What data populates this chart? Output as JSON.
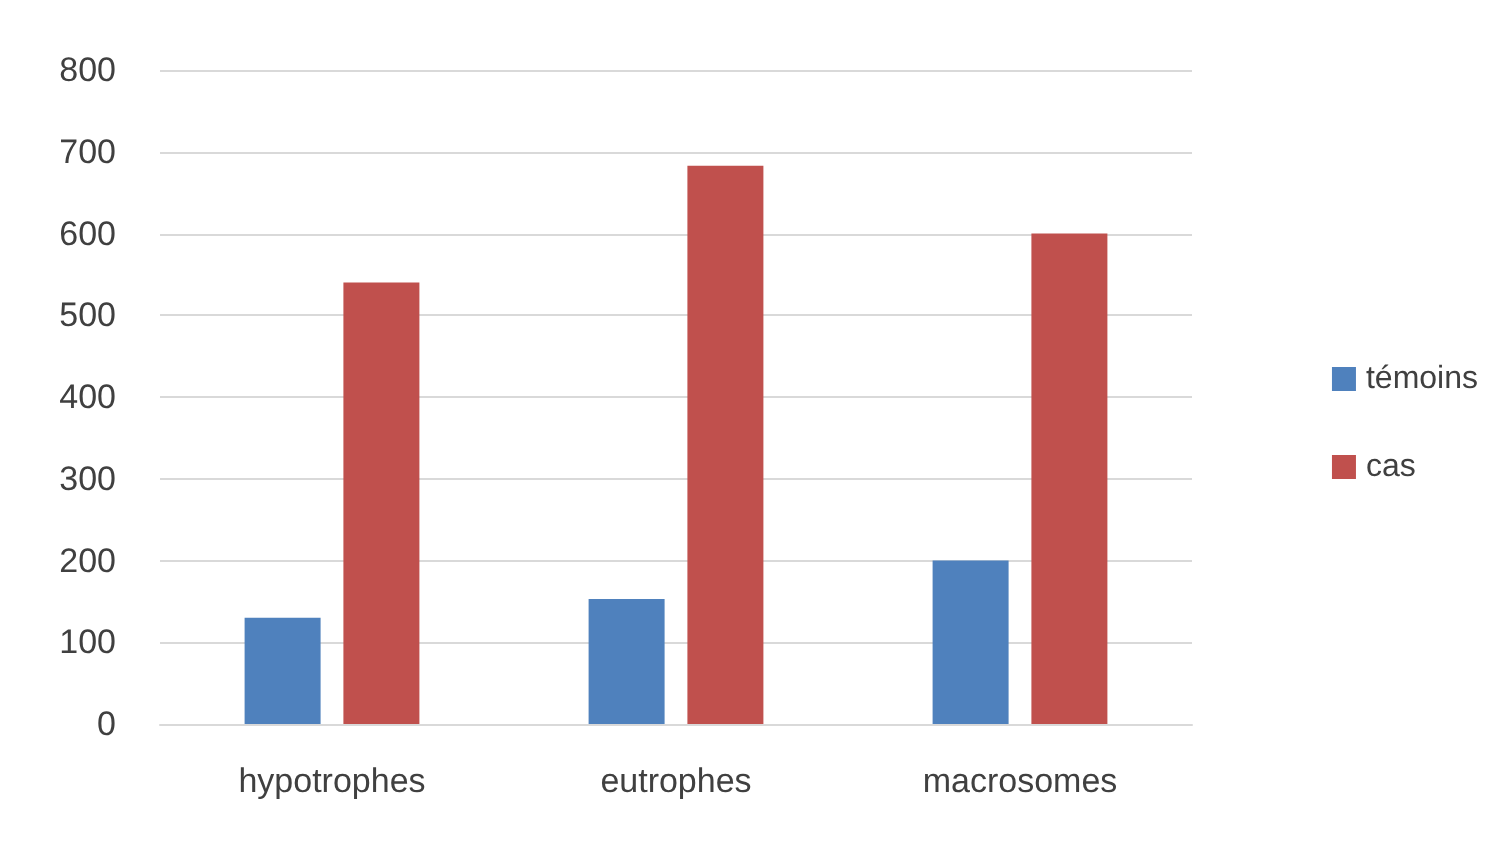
{
  "chart_data": {
    "type": "bar",
    "categories": [
      "hypotrophes",
      "eutrophes",
      "macrosomes"
    ],
    "series": [
      {
        "name": "témoins",
        "color": "#4f81bd",
        "values": [
          130,
          153,
          200
        ]
      },
      {
        "name": "cas",
        "color": "#c0504d",
        "values": [
          540,
          683,
          600
        ]
      }
    ],
    "ylim": [
      0,
      800
    ],
    "yticks": [
      0,
      100,
      200,
      300,
      400,
      500,
      600,
      700,
      800
    ],
    "grid": "y",
    "legend": "right"
  }
}
